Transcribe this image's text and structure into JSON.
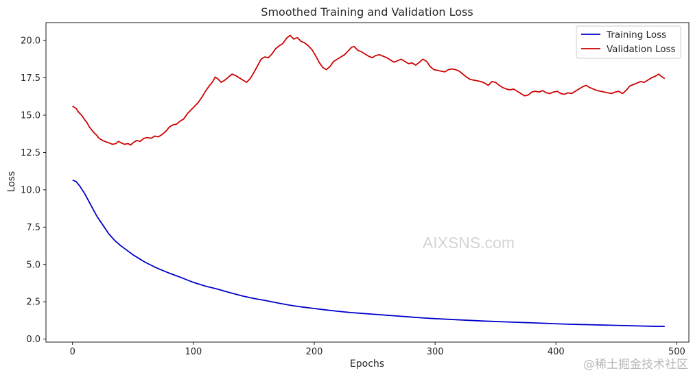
{
  "chart_data": {
    "type": "line",
    "title": "Smoothed Training and Validation Loss",
    "xlabel": "Epochs",
    "ylabel": "Loss",
    "xlim": [
      -22,
      510
    ],
    "ylim": [
      -0.2,
      21.2
    ],
    "xticks": [
      0,
      100,
      200,
      300,
      400,
      500
    ],
    "yticks": [
      0.0,
      2.5,
      5.0,
      7.5,
      10.0,
      12.5,
      15.0,
      17.5,
      20.0
    ],
    "ytick_labels": [
      "0.0",
      "2.5",
      "5.0",
      "7.5",
      "10.0",
      "12.5",
      "15.0",
      "17.5",
      "20.0"
    ],
    "legend_position": "upper right",
    "series": [
      {
        "name": "Training Loss",
        "color": "#0000cc",
        "points": [
          [
            0,
            10.65
          ],
          [
            3,
            10.55
          ],
          [
            6,
            10.25
          ],
          [
            10,
            9.75
          ],
          [
            15,
            9.0
          ],
          [
            20,
            8.25
          ],
          [
            25,
            7.65
          ],
          [
            30,
            7.05
          ],
          [
            35,
            6.6
          ],
          [
            40,
            6.25
          ],
          [
            45,
            5.95
          ],
          [
            50,
            5.65
          ],
          [
            55,
            5.4
          ],
          [
            60,
            5.15
          ],
          [
            70,
            4.75
          ],
          [
            80,
            4.42
          ],
          [
            90,
            4.12
          ],
          [
            100,
            3.8
          ],
          [
            110,
            3.55
          ],
          [
            120,
            3.35
          ],
          [
            130,
            3.12
          ],
          [
            140,
            2.9
          ],
          [
            150,
            2.72
          ],
          [
            160,
            2.58
          ],
          [
            170,
            2.42
          ],
          [
            180,
            2.27
          ],
          [
            190,
            2.15
          ],
          [
            200,
            2.05
          ],
          [
            210,
            1.95
          ],
          [
            220,
            1.86
          ],
          [
            230,
            1.78
          ],
          [
            240,
            1.72
          ],
          [
            250,
            1.66
          ],
          [
            260,
            1.6
          ],
          [
            270,
            1.54
          ],
          [
            280,
            1.48
          ],
          [
            290,
            1.42
          ],
          [
            300,
            1.37
          ],
          [
            310,
            1.33
          ],
          [
            320,
            1.29
          ],
          [
            330,
            1.25
          ],
          [
            340,
            1.21
          ],
          [
            350,
            1.18
          ],
          [
            360,
            1.15
          ],
          [
            370,
            1.12
          ],
          [
            380,
            1.09
          ],
          [
            390,
            1.06
          ],
          [
            400,
            1.03
          ],
          [
            410,
            1.0
          ],
          [
            420,
            0.98
          ],
          [
            430,
            0.96
          ],
          [
            440,
            0.94
          ],
          [
            450,
            0.92
          ],
          [
            460,
            0.9
          ],
          [
            470,
            0.88
          ],
          [
            480,
            0.86
          ],
          [
            490,
            0.85
          ]
        ]
      },
      {
        "name": "Validation Loss",
        "color": "#cc0000",
        "points": [
          [
            0,
            15.6
          ],
          [
            3,
            15.45
          ],
          [
            5,
            15.2
          ],
          [
            8,
            14.95
          ],
          [
            10,
            14.7
          ],
          [
            12,
            14.5
          ],
          [
            14,
            14.2
          ],
          [
            16,
            14.0
          ],
          [
            18,
            13.8
          ],
          [
            20,
            13.65
          ],
          [
            22,
            13.45
          ],
          [
            25,
            13.3
          ],
          [
            28,
            13.2
          ],
          [
            30,
            13.15
          ],
          [
            33,
            13.05
          ],
          [
            36,
            13.1
          ],
          [
            38,
            13.25
          ],
          [
            40,
            13.15
          ],
          [
            43,
            13.05
          ],
          [
            46,
            13.1
          ],
          [
            48,
            13.0
          ],
          [
            50,
            13.15
          ],
          [
            53,
            13.3
          ],
          [
            56,
            13.25
          ],
          [
            59,
            13.45
          ],
          [
            62,
            13.5
          ],
          [
            65,
            13.45
          ],
          [
            68,
            13.6
          ],
          [
            71,
            13.55
          ],
          [
            74,
            13.7
          ],
          [
            77,
            13.9
          ],
          [
            80,
            14.2
          ],
          [
            83,
            14.35
          ],
          [
            86,
            14.4
          ],
          [
            89,
            14.6
          ],
          [
            92,
            14.75
          ],
          [
            95,
            15.1
          ],
          [
            98,
            15.35
          ],
          [
            101,
            15.6
          ],
          [
            104,
            15.85
          ],
          [
            107,
            16.2
          ],
          [
            110,
            16.6
          ],
          [
            113,
            16.95
          ],
          [
            116,
            17.25
          ],
          [
            118,
            17.55
          ],
          [
            120,
            17.45
          ],
          [
            123,
            17.2
          ],
          [
            126,
            17.35
          ],
          [
            129,
            17.55
          ],
          [
            132,
            17.75
          ],
          [
            135,
            17.65
          ],
          [
            138,
            17.5
          ],
          [
            141,
            17.35
          ],
          [
            144,
            17.2
          ],
          [
            147,
            17.45
          ],
          [
            150,
            17.85
          ],
          [
            153,
            18.3
          ],
          [
            156,
            18.75
          ],
          [
            159,
            18.9
          ],
          [
            162,
            18.85
          ],
          [
            165,
            19.1
          ],
          [
            168,
            19.45
          ],
          [
            171,
            19.65
          ],
          [
            174,
            19.8
          ],
          [
            177,
            20.15
          ],
          [
            180,
            20.35
          ],
          [
            183,
            20.1
          ],
          [
            186,
            20.2
          ],
          [
            189,
            19.95
          ],
          [
            192,
            19.85
          ],
          [
            195,
            19.65
          ],
          [
            198,
            19.4
          ],
          [
            201,
            19.0
          ],
          [
            204,
            18.55
          ],
          [
            207,
            18.2
          ],
          [
            210,
            18.05
          ],
          [
            213,
            18.25
          ],
          [
            216,
            18.6
          ],
          [
            219,
            18.75
          ],
          [
            222,
            18.9
          ],
          [
            225,
            19.05
          ],
          [
            228,
            19.3
          ],
          [
            231,
            19.55
          ],
          [
            233,
            19.6
          ],
          [
            236,
            19.35
          ],
          [
            239,
            19.25
          ],
          [
            242,
            19.1
          ],
          [
            245,
            18.95
          ],
          [
            248,
            18.85
          ],
          [
            251,
            19.0
          ],
          [
            254,
            19.05
          ],
          [
            257,
            18.95
          ],
          [
            260,
            18.85
          ],
          [
            263,
            18.7
          ],
          [
            266,
            18.55
          ],
          [
            269,
            18.65
          ],
          [
            272,
            18.75
          ],
          [
            275,
            18.6
          ],
          [
            278,
            18.45
          ],
          [
            281,
            18.5
          ],
          [
            284,
            18.35
          ],
          [
            287,
            18.55
          ],
          [
            290,
            18.75
          ],
          [
            293,
            18.6
          ],
          [
            296,
            18.25
          ],
          [
            299,
            18.05
          ],
          [
            302,
            18.0
          ],
          [
            305,
            17.95
          ],
          [
            308,
            17.9
          ],
          [
            311,
            18.05
          ],
          [
            314,
            18.1
          ],
          [
            317,
            18.05
          ],
          [
            320,
            17.95
          ],
          [
            323,
            17.75
          ],
          [
            326,
            17.55
          ],
          [
            329,
            17.4
          ],
          [
            332,
            17.35
          ],
          [
            335,
            17.3
          ],
          [
            338,
            17.25
          ],
          [
            341,
            17.15
          ],
          [
            344,
            17.0
          ],
          [
            347,
            17.25
          ],
          [
            350,
            17.2
          ],
          [
            353,
            17.0
          ],
          [
            356,
            16.85
          ],
          [
            359,
            16.75
          ],
          [
            362,
            16.7
          ],
          [
            365,
            16.75
          ],
          [
            368,
            16.6
          ],
          [
            371,
            16.45
          ],
          [
            374,
            16.3
          ],
          [
            377,
            16.35
          ],
          [
            380,
            16.55
          ],
          [
            383,
            16.6
          ],
          [
            386,
            16.55
          ],
          [
            389,
            16.65
          ],
          [
            392,
            16.5
          ],
          [
            395,
            16.45
          ],
          [
            398,
            16.55
          ],
          [
            401,
            16.6
          ],
          [
            404,
            16.45
          ],
          [
            407,
            16.4
          ],
          [
            410,
            16.5
          ],
          [
            413,
            16.45
          ],
          [
            416,
            16.6
          ],
          [
            419,
            16.75
          ],
          [
            422,
            16.9
          ],
          [
            425,
            17.0
          ],
          [
            428,
            16.85
          ],
          [
            431,
            16.75
          ],
          [
            434,
            16.65
          ],
          [
            437,
            16.6
          ],
          [
            440,
            16.55
          ],
          [
            443,
            16.5
          ],
          [
            446,
            16.45
          ],
          [
            449,
            16.55
          ],
          [
            452,
            16.6
          ],
          [
            455,
            16.45
          ],
          [
            458,
            16.65
          ],
          [
            461,
            16.95
          ],
          [
            464,
            17.05
          ],
          [
            467,
            17.15
          ],
          [
            470,
            17.25
          ],
          [
            473,
            17.2
          ],
          [
            476,
            17.35
          ],
          [
            479,
            17.5
          ],
          [
            482,
            17.6
          ],
          [
            485,
            17.75
          ],
          [
            488,
            17.55
          ],
          [
            490,
            17.45
          ]
        ]
      }
    ]
  },
  "watermark": "AIXSNS.com",
  "corner_watermark": "@稀土掘金技术社区"
}
